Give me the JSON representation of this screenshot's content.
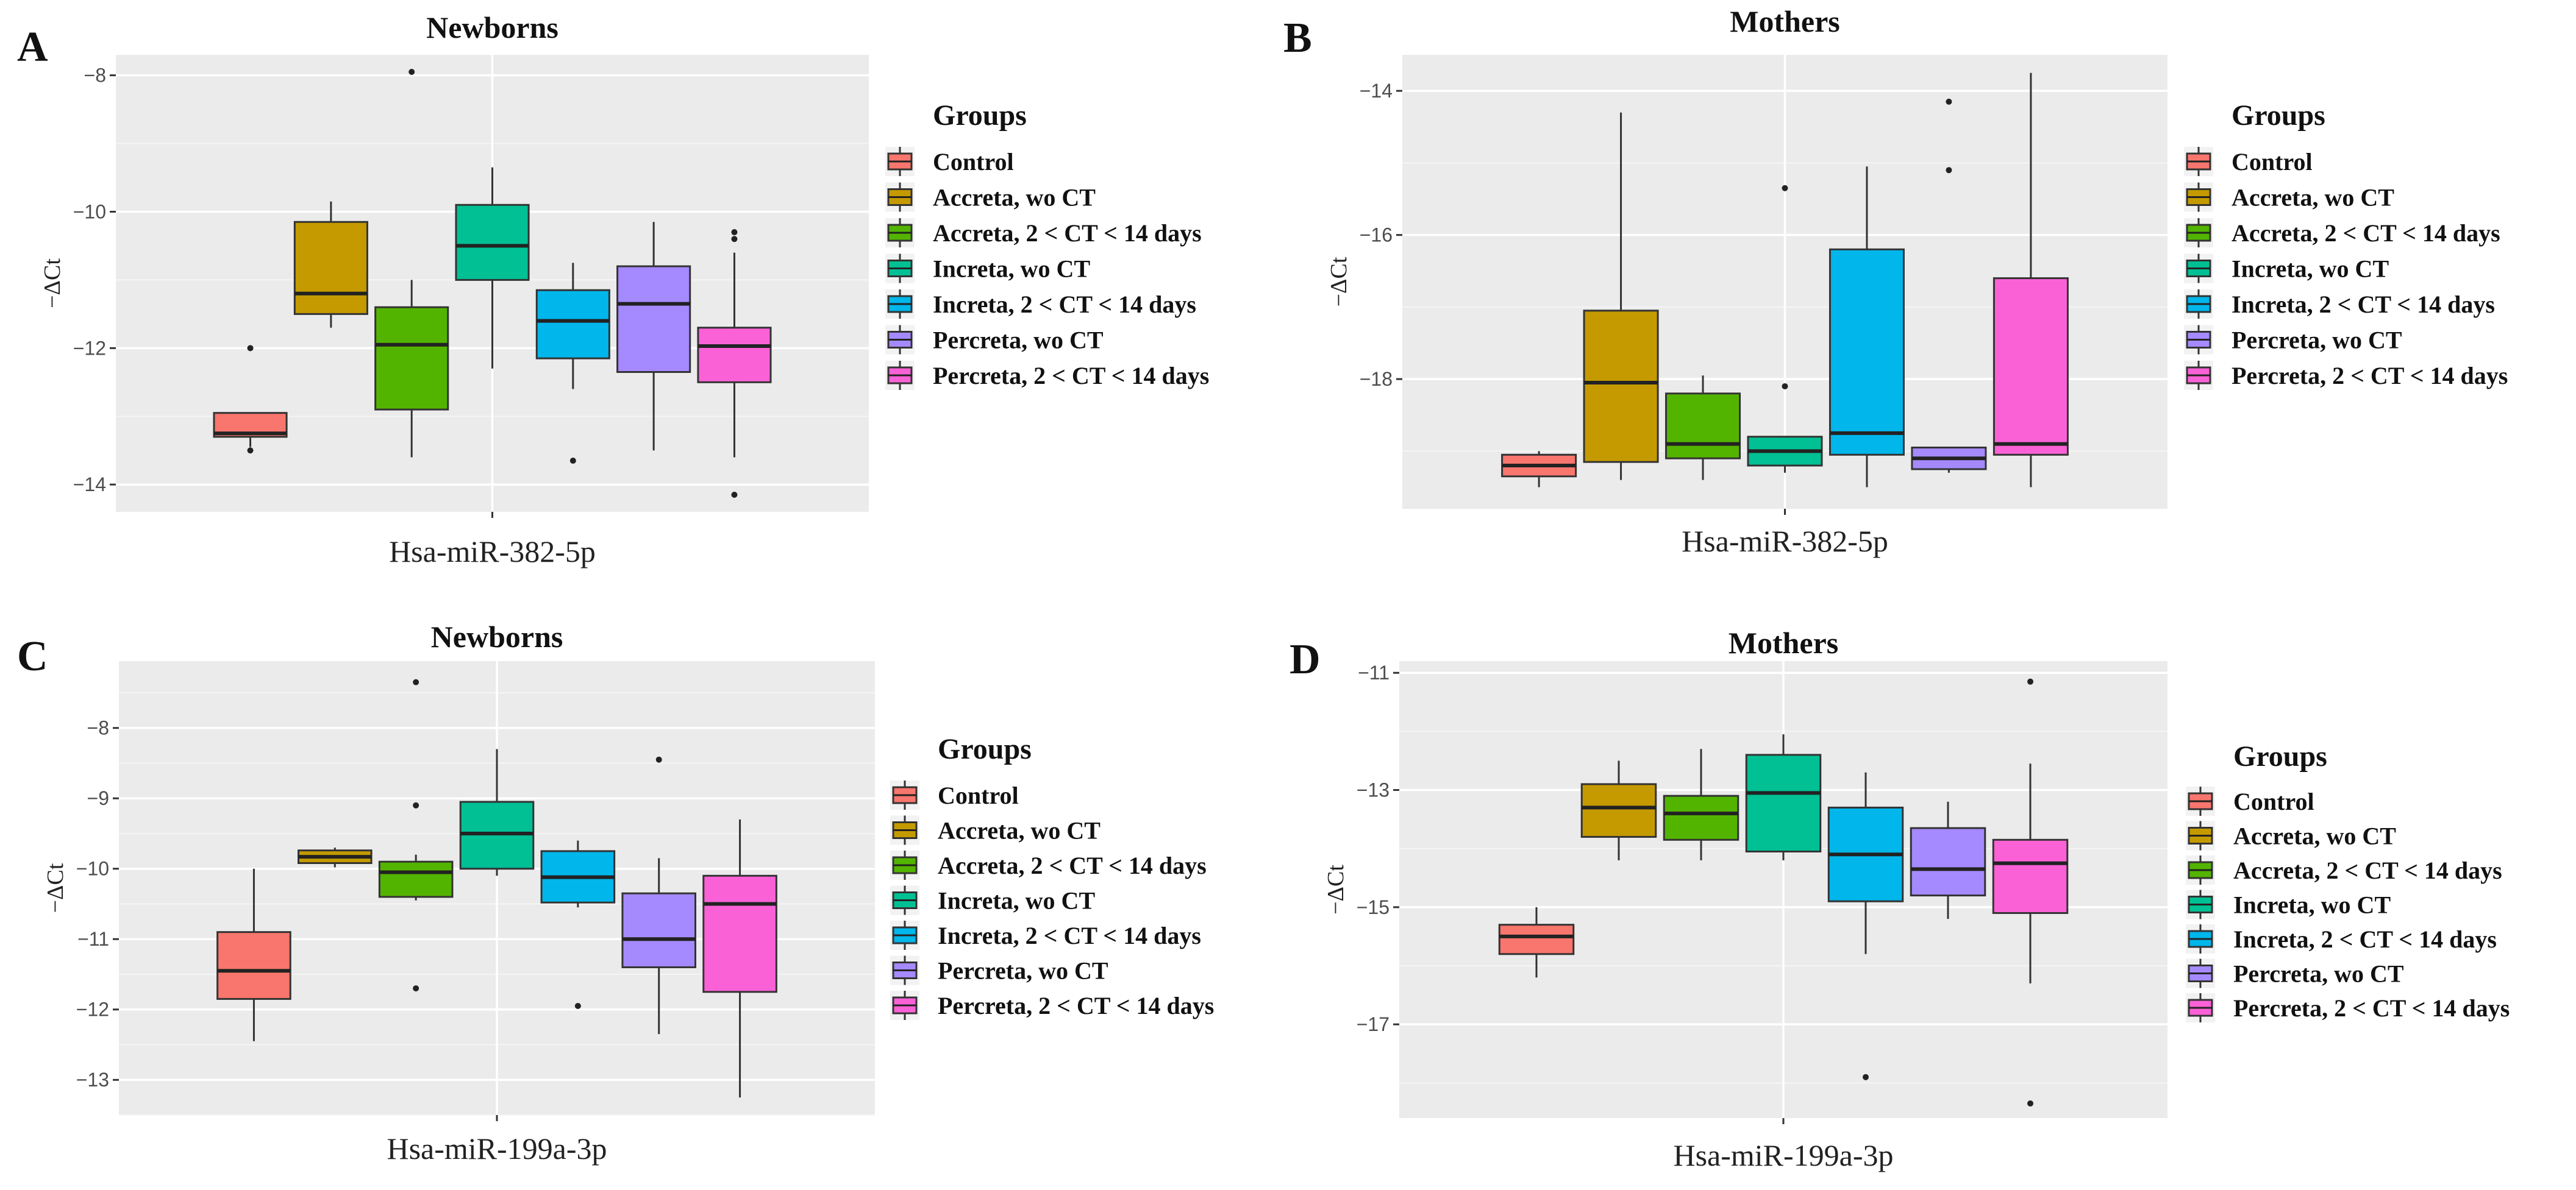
{
  "chart_data": [
    {
      "panel": "A",
      "type": "boxplot",
      "title": "Newborns",
      "xlabel": "Hsa-miR-382-5p",
      "ylabel": "−ΔCt",
      "ylim": [
        -14.4,
        -7.7
      ],
      "yticks": [
        -8,
        -10,
        -12,
        -14
      ],
      "ytick_labels": [
        "−8",
        "−10",
        "−12",
        "−14"
      ],
      "legend_title": "Groups",
      "groups": [
        {
          "name": "Control",
          "color": "#F8766D",
          "min": -13.45,
          "q1": -13.3,
          "median": -13.25,
          "q3": -12.95,
          "max": -12.95,
          "outliers": [
            -12.0,
            -13.5
          ]
        },
        {
          "name": "Accreta, wo CT",
          "color": "#C49A00",
          "min": -11.7,
          "q1": -11.5,
          "median": -11.2,
          "q3": -10.15,
          "max": -9.85,
          "outliers": []
        },
        {
          "name": "Accreta, 2 < CT < 14 days",
          "color": "#53B400",
          "min": -13.6,
          "q1": -12.9,
          "median": -11.95,
          "q3": -11.4,
          "max": -11.0,
          "outliers": [
            -7.95
          ]
        },
        {
          "name": "Increta, wo CT",
          "color": "#00C094",
          "min": -12.3,
          "q1": -11.0,
          "median": -10.5,
          "q3": -9.9,
          "max": -9.35,
          "outliers": []
        },
        {
          "name": "Increta, 2 < CT < 14 days",
          "color": "#00B6EB",
          "min": -12.6,
          "q1": -12.15,
          "median": -11.6,
          "q3": -11.15,
          "max": -10.75,
          "outliers": [
            -13.65
          ]
        },
        {
          "name": "Percreta, wo CT",
          "color": "#A58AFF",
          "min": -13.5,
          "q1": -12.35,
          "median": -11.35,
          "q3": -10.8,
          "max": -10.15,
          "outliers": []
        },
        {
          "name": "Percreta, 2 < CT < 14 days",
          "color": "#FB61D7",
          "min": -13.6,
          "q1": -12.5,
          "median": -11.97,
          "q3": -11.7,
          "max": -10.6,
          "outliers": [
            -10.3,
            -10.4,
            -14.15
          ]
        }
      ]
    },
    {
      "panel": "B",
      "type": "boxplot",
      "title": "Mothers",
      "xlabel": "Hsa-miR-382-5p",
      "ylabel": "−ΔCt",
      "ylim": [
        -19.8,
        -13.5
      ],
      "yticks": [
        -14,
        -16,
        -18
      ],
      "ytick_labels": [
        "−14",
        "−16",
        "−18"
      ],
      "legend_title": "Groups",
      "groups": [
        {
          "name": "Control",
          "color": "#F8766D",
          "min": -19.5,
          "q1": -19.35,
          "median": -19.2,
          "q3": -19.05,
          "max": -19.0,
          "outliers": []
        },
        {
          "name": "Accreta, wo CT",
          "color": "#C49A00",
          "min": -19.4,
          "q1": -19.15,
          "median": -18.05,
          "q3": -17.05,
          "max": -14.3,
          "outliers": []
        },
        {
          "name": "Accreta, 2 < CT < 14 days",
          "color": "#53B400",
          "min": -19.4,
          "q1": -19.1,
          "median": -18.9,
          "q3": -18.2,
          "max": -17.95,
          "outliers": []
        },
        {
          "name": "Increta, wo CT",
          "color": "#00C094",
          "min": -19.3,
          "q1": -19.2,
          "median": -19.0,
          "q3": -18.8,
          "max": -18.8,
          "outliers": [
            -15.35,
            -18.1
          ]
        },
        {
          "name": "Increta, 2 < CT < 14 days",
          "color": "#00B6EB",
          "min": -19.5,
          "q1": -19.05,
          "median": -18.75,
          "q3": -16.2,
          "max": -15.05,
          "outliers": []
        },
        {
          "name": "Percreta, wo CT",
          "color": "#A58AFF",
          "min": -19.3,
          "q1": -19.25,
          "median": -19.1,
          "q3": -18.95,
          "max": -18.95,
          "outliers": [
            -14.15,
            -15.1
          ]
        },
        {
          "name": "Percreta, 2 < CT < 14 days",
          "color": "#FB61D7",
          "min": -19.5,
          "q1": -19.05,
          "median": -18.9,
          "q3": -16.6,
          "max": -13.75,
          "outliers": []
        }
      ]
    },
    {
      "panel": "C",
      "type": "boxplot",
      "title": "Newborns",
      "xlabel": "Hsa-miR-199a-3p",
      "ylabel": "−ΔCt",
      "ylim": [
        -13.5,
        -7.05
      ],
      "yticks": [
        -8,
        -9,
        -10,
        -11,
        -12,
        -13
      ],
      "ytick_labels": [
        "−8",
        "−9",
        "−10",
        "−11",
        "−12",
        "−13"
      ],
      "legend_title": "Groups",
      "groups": [
        {
          "name": "Control",
          "color": "#F8766D",
          "min": -12.45,
          "q1": -11.85,
          "median": -11.45,
          "q3": -10.9,
          "max": -10.0,
          "outliers": []
        },
        {
          "name": "Accreta, wo CT",
          "color": "#C49A00",
          "min": -9.98,
          "q1": -9.92,
          "median": -9.83,
          "q3": -9.74,
          "max": -9.7,
          "outliers": []
        },
        {
          "name": "Accreta, 2 < CT < 14 days",
          "color": "#53B400",
          "min": -10.45,
          "q1": -10.4,
          "median": -10.05,
          "q3": -9.9,
          "max": -9.8,
          "outliers": [
            -7.35,
            -9.1,
            -11.7
          ]
        },
        {
          "name": "Increta, wo CT",
          "color": "#00C094",
          "min": -10.1,
          "q1": -10.0,
          "median": -9.5,
          "q3": -9.05,
          "max": -8.3,
          "outliers": []
        },
        {
          "name": "Increta, 2 < CT < 14 days",
          "color": "#00B6EB",
          "min": -10.55,
          "q1": -10.48,
          "median": -10.12,
          "q3": -9.75,
          "max": -9.6,
          "outliers": [
            -11.95
          ]
        },
        {
          "name": "Percreta, wo CT",
          "color": "#A58AFF",
          "min": -12.35,
          "q1": -11.4,
          "median": -11.0,
          "q3": -10.35,
          "max": -9.85,
          "outliers": [
            -8.45
          ]
        },
        {
          "name": "Percreta, 2 < CT < 14 days",
          "color": "#FB61D7",
          "min": -13.25,
          "q1": -11.75,
          "median": -10.5,
          "q3": -10.1,
          "max": -9.3,
          "outliers": []
        }
      ]
    },
    {
      "panel": "D",
      "type": "boxplot",
      "title": "Mothers",
      "xlabel": "Hsa-miR-199a-3p",
      "ylabel": "−ΔCt",
      "ylim": [
        -18.6,
        -10.8
      ],
      "yticks": [
        -11,
        -13,
        -15,
        -17
      ],
      "ytick_labels": [
        "−11",
        "−13",
        "−15",
        "−17"
      ],
      "legend_title": "Groups",
      "groups": [
        {
          "name": "Control",
          "color": "#F8766D",
          "min": -16.2,
          "q1": -15.8,
          "median": -15.5,
          "q3": -15.3,
          "max": -15.0,
          "outliers": []
        },
        {
          "name": "Accreta, wo CT",
          "color": "#C49A00",
          "min": -14.2,
          "q1": -13.8,
          "median": -13.3,
          "q3": -12.9,
          "max": -12.5,
          "outliers": []
        },
        {
          "name": "Accreta, 2 < CT < 14 days",
          "color": "#53B400",
          "min": -14.2,
          "q1": -13.85,
          "median": -13.4,
          "q3": -13.1,
          "max": -12.3,
          "outliers": []
        },
        {
          "name": "Increta, wo CT",
          "color": "#00C094",
          "min": -14.2,
          "q1": -14.05,
          "median": -13.05,
          "q3": -12.4,
          "max": -12.05,
          "outliers": []
        },
        {
          "name": "Increta, 2 < CT < 14 days",
          "color": "#00B6EB",
          "min": -15.8,
          "q1": -14.9,
          "median": -14.1,
          "q3": -13.3,
          "max": -12.7,
          "outliers": [
            -17.9
          ]
        },
        {
          "name": "Percreta, wo CT",
          "color": "#A58AFF",
          "min": -15.2,
          "q1": -14.8,
          "median": -14.35,
          "q3": -13.65,
          "max": -13.2,
          "outliers": []
        },
        {
          "name": "Percreta, 2 < CT < 14 days",
          "color": "#FB61D7",
          "min": -16.3,
          "q1": -15.1,
          "median": -14.25,
          "q3": -13.85,
          "max": -12.55,
          "outliers": [
            -11.15,
            -18.35
          ]
        }
      ]
    }
  ]
}
